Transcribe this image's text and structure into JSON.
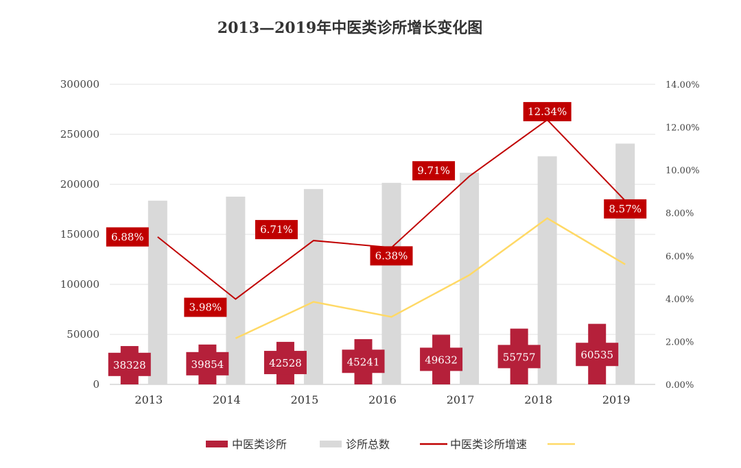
{
  "chart_data": {
    "type": "bar",
    "title": "2013—2019年中医类诊所增长变化图",
    "categories": [
      "2013",
      "2014",
      "2015",
      "2016",
      "2017",
      "2018",
      "2019"
    ],
    "series": [
      {
        "name": "中医类诊所",
        "type": "bar",
        "axis": "left",
        "color": "#b5203a",
        "values": [
          38328,
          39854,
          42528,
          45241,
          49632,
          55757,
          60535
        ],
        "labels": [
          "38328",
          "39854",
          "42528",
          "45241",
          "49632",
          "55757",
          "60535"
        ]
      },
      {
        "name": "诊所总数",
        "type": "bar",
        "axis": "left",
        "color": "#d9d9d9",
        "values": [
          183700,
          187700,
          195300,
          201500,
          211600,
          228000,
          240700
        ]
      },
      {
        "name": "中医类诊所增速",
        "type": "line",
        "axis": "right",
        "color": "#c00000",
        "values": [
          6.88,
          3.98,
          6.71,
          6.38,
          9.71,
          12.34,
          8.57
        ],
        "labels": [
          "6.88%",
          "3.98%",
          "6.71%",
          "6.38%",
          "9.71%",
          "12.34%",
          "8.57%"
        ]
      },
      {
        "name": "",
        "type": "line",
        "axis": "right",
        "color": "#ffd966",
        "values": [
          null,
          2.15,
          3.85,
          3.15,
          5.1,
          7.75,
          5.6
        ]
      }
    ],
    "y_left": {
      "min": 0,
      "max": 300000,
      "ticks": [
        "0",
        "50000",
        "100000",
        "150000",
        "200000",
        "250000",
        "300000"
      ]
    },
    "y_right": {
      "min": 0,
      "max": 14,
      "ticks": [
        "0.00%",
        "2.00%",
        "4.00%",
        "6.00%",
        "8.00%",
        "10.00%",
        "12.00%",
        "14.00%"
      ]
    },
    "grid": true,
    "legend_position": "bottom"
  }
}
